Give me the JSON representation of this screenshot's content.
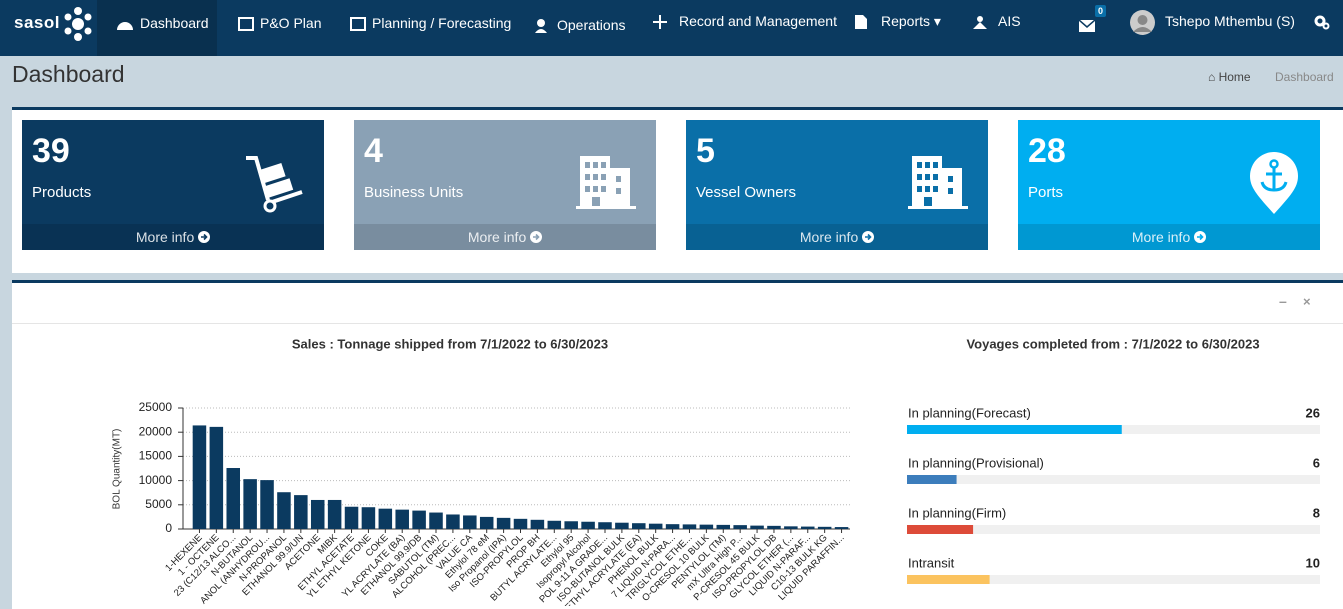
{
  "nav": {
    "logo": "sasol",
    "items": [
      "Dashboard",
      "P&O Plan",
      "Planning / Forecasting",
      "Operations",
      "Record and Management",
      "Reports",
      "AIS"
    ],
    "mail_badge": "0",
    "user": "Tshepo Mthembu (S)"
  },
  "header": {
    "title": "Dashboard",
    "breadcrumb": [
      "Home",
      "Dashboard"
    ]
  },
  "info_boxes": [
    {
      "value": 39,
      "label": "Products",
      "link": "More info",
      "color": "#0b3a60"
    },
    {
      "value": 4,
      "label": "Business Units",
      "link": "More info",
      "color": "#8aa1b5"
    },
    {
      "value": 5,
      "label": "Vessel Owners",
      "link": "More info",
      "color": "#0a6fa8"
    },
    {
      "value": 28,
      "label": "Ports",
      "link": "More info",
      "color": "#00aef0"
    }
  ],
  "chart_data": {
    "type": "bar",
    "title": "Sales : Tonnage shipped from 7/1/2022 to 6/30/2023",
    "y_label": "BOL Quantity(MT)",
    "categories": [
      "1-HEXENE",
      "1 - OCTENE",
      "23 (C12/13 ALCO...",
      "N-BUTANOL",
      "ANOL (ANHYDROU...",
      "N-PROPANOL",
      "ETHANOL 99.9/UN",
      "ACETONE",
      "MIBK",
      "ETHYL ACETATE",
      "YL ETHYL KETONE",
      "COKE",
      "YL ACRYLATE (BA)",
      "ETHANOL 99.9/DB",
      "SABUTOL (TM)",
      "ALCOHOL (PREC...",
      "VALUE CA",
      "Ethylol 78 eM",
      "Iso Propanol (IPA)",
      "ISO-PROPYLOL",
      "PROP BH",
      "BUTYL ACRYLATE...",
      "Ethylol 95",
      "Isopropyl Alcohol",
      "POL 9-11 A GRADE...",
      "ISO-BUTANOL BULK",
      "ETHYL ACRYLATE (EA)",
      "PHENOL BULK",
      "7 LIQUID N-PARA...",
      "TRIGLYCOL ETHE...",
      "O-CRESOL 10 BULK",
      "PENTYLOL (TM)",
      "mX Ultra High P...",
      "P-CRESOL 45 BULK",
      "ISO-PROPYLOL DB",
      "GLYCOL ETHER (...",
      "LIQUID N-PARAF...",
      "C10-13 BULK KG",
      "LIQUID PARAFFIN..."
    ],
    "values": [
      21400,
      21100,
      12600,
      10300,
      10100,
      7600,
      7000,
      6000,
      6000,
      4600,
      4500,
      4200,
      4000,
      3800,
      3400,
      3000,
      2800,
      2500,
      2300,
      2100,
      1900,
      1700,
      1600,
      1500,
      1400,
      1300,
      1200,
      1100,
      1000,
      950,
      900,
      850,
      800,
      700,
      650,
      550,
      500,
      450,
      400
    ],
    "color": "#0b3a60",
    "ylim": [
      0,
      25000
    ],
    "yticks": [
      0,
      5000,
      10000,
      15000,
      20000,
      25000
    ],
    "grid": true
  },
  "voyages": {
    "title": "Voyages completed from : 7/1/2022 to 6/30/2023",
    "items": [
      {
        "name": "In planning(Forecast)",
        "value": 26,
        "color": "#00aef0"
      },
      {
        "name": "In planning(Provisional)",
        "value": 6,
        "color": "#3c7dbc"
      },
      {
        "name": "In planning(Firm)",
        "value": 8,
        "color": "#dd4b39"
      },
      {
        "name": "Intransit",
        "value": 10,
        "color": "#fbc35f"
      }
    ]
  }
}
